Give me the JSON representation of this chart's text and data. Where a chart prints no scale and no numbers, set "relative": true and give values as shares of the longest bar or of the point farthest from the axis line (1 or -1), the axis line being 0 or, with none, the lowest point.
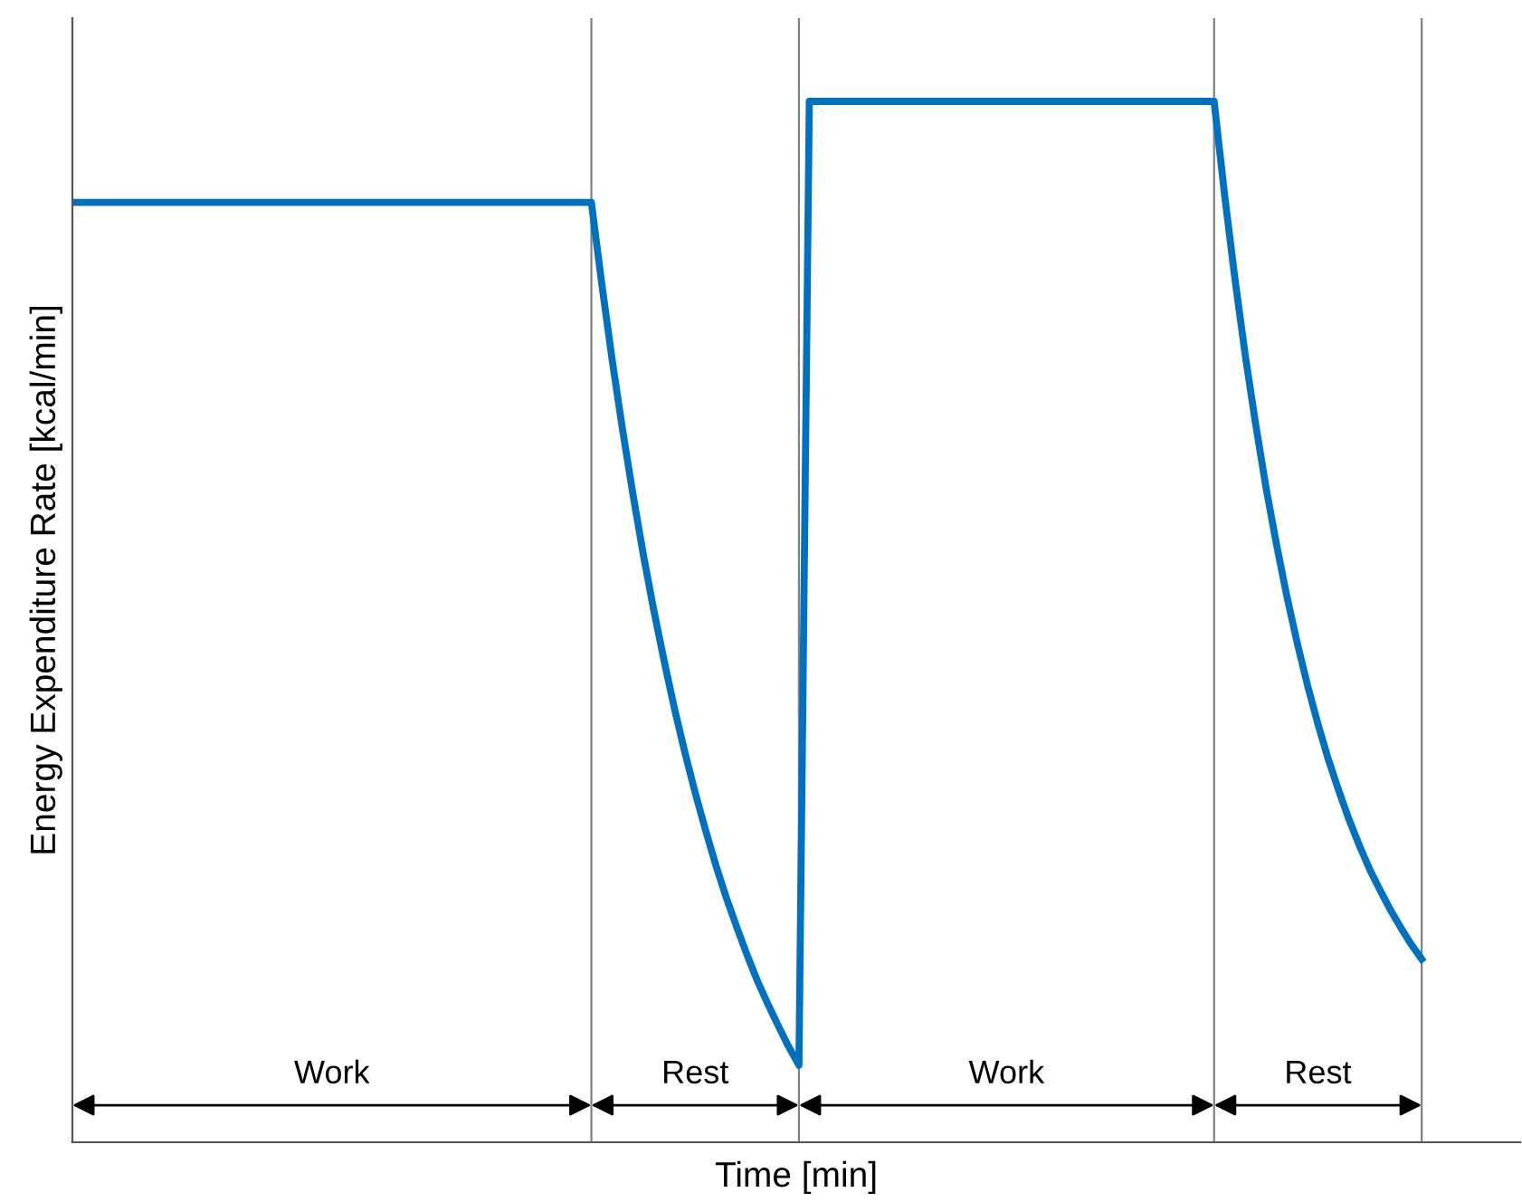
{
  "chart_data": {
    "type": "line",
    "relative": true,
    "xlabel": "Time [min]",
    "ylabel": "Energy Expenditure Rate [kcal/min]",
    "legend": false,
    "marker": "none",
    "line_style": "solid",
    "categories": [
      null,
      null,
      null,
      null,
      null,
      null,
      null,
      null,
      null,
      null,
      null,
      null,
      null,
      null,
      null,
      null,
      null,
      null,
      null,
      null,
      null,
      null,
      null,
      null,
      null,
      null,
      null,
      null,
      null,
      null,
      null,
      null,
      null,
      null,
      null,
      null,
      null,
      null,
      null,
      null,
      null,
      null,
      null,
      null,
      null,
      null,
      null,
      null,
      null,
      null,
      null,
      null,
      null,
      null,
      null,
      null,
      null,
      null,
      null,
      null,
      null,
      null,
      null,
      null,
      null,
      null,
      null,
      null,
      null,
      null,
      null,
      null,
      null,
      null,
      null,
      null,
      null,
      null,
      null,
      null,
      null,
      null,
      null,
      null,
      null,
      null,
      null,
      null,
      null,
      null,
      null,
      null,
      null,
      null,
      null,
      null,
      null,
      null,
      null,
      null,
      null,
      null,
      null,
      null,
      null,
      null,
      null,
      null,
      null,
      null,
      null,
      null,
      null,
      null,
      null,
      null,
      null,
      null,
      null,
      null,
      null,
      null,
      null,
      null,
      null,
      null,
      null,
      null,
      null,
      null,
      null
    ],
    "series": [
      {
        "color": "#0070c0",
        "values": [
          0.903,
          0.903,
          0.903,
          0.903,
          0.903,
          0.903,
          0.903,
          0.903,
          0.903,
          0.903,
          0.903,
          0.903,
          0.903,
          0.903,
          0.903,
          0.903,
          0.903,
          0.903,
          0.903,
          0.903,
          0.903,
          0.903,
          0.903,
          0.903,
          0.903,
          0.903,
          0.903,
          0.903,
          0.903,
          0.903,
          0.903,
          0.903,
          0.903,
          0.903,
          0.903,
          0.903,
          0.903,
          0.903,
          0.903,
          0.903,
          0.903,
          0.903,
          0.903,
          0.903,
          0.903,
          0.903,
          0.903,
          0.903,
          0.903,
          0.903,
          0.903,
          0.825,
          0.752,
          0.685,
          0.623,
          0.565,
          0.512,
          0.463,
          0.417,
          0.375,
          0.336,
          0.3,
          0.266,
          0.235,
          0.207,
          0.18,
          0.155,
          0.133,
          0.112,
          0.092,
          0.074,
          1.0,
          1.0,
          1.0,
          1.0,
          1.0,
          1.0,
          1.0,
          1.0,
          1.0,
          1.0,
          1.0,
          1.0,
          1.0,
          1.0,
          1.0,
          1.0,
          1.0,
          1.0,
          1.0,
          1.0,
          1.0,
          1.0,
          1.0,
          1.0,
          1.0,
          1.0,
          1.0,
          1.0,
          1.0,
          1.0,
          1.0,
          1.0,
          1.0,
          1.0,
          1.0,
          1.0,
          1.0,
          1.0,
          1.0,
          1.0,
          0.911,
          0.83,
          0.756,
          0.69,
          0.629,
          0.575,
          0.525,
          0.48,
          0.439,
          0.402,
          0.368,
          0.338,
          0.31,
          0.285,
          0.262,
          0.242,
          0.223,
          0.206,
          0.19,
          0.176
        ]
      }
    ],
    "annotations": [
      "Work",
      "Rest",
      "Work",
      "Rest"
    ]
  }
}
